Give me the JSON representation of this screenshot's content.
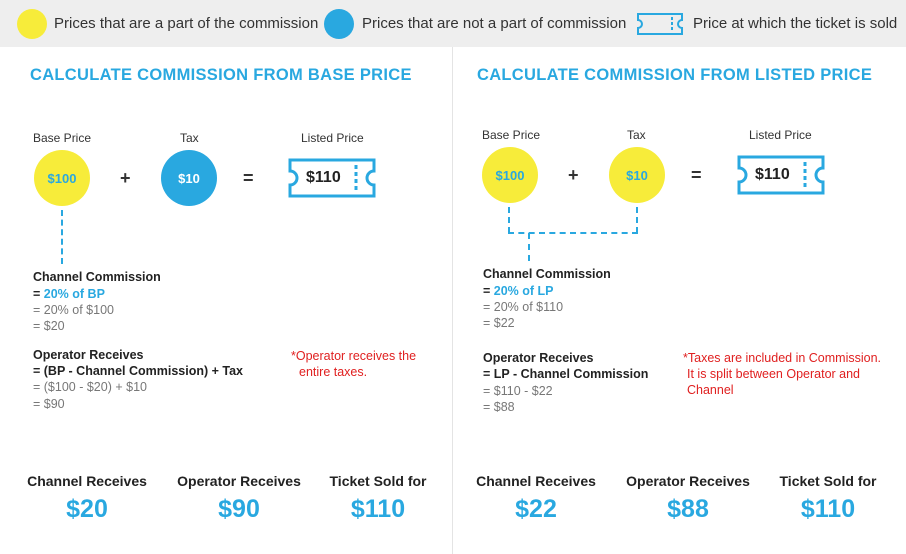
{
  "legend": {
    "yellow_label": "Prices that are a part of the commission",
    "blue_label": "Prices that are not a part of commission",
    "ticket_label": "Price at which the ticket is sold"
  },
  "colors": {
    "accent": "#29a8e0",
    "yellow": "#f7ec3a",
    "note": "#e02020"
  },
  "left": {
    "title": "CALCULATE COMMISSION FROM BASE PRICE",
    "base_label": "Base Price",
    "base_value": "$100",
    "plus": "+",
    "tax_label": "Tax",
    "tax_value": "$10",
    "equals": "=",
    "listed_label": "Listed Price",
    "listed_value": "$110",
    "channel_heading": "Channel Commission",
    "channel_eq_prefix": "= ",
    "channel_formula": "20% of BP",
    "channel_line2": "= 20% of $100",
    "channel_line3": "= $20",
    "operator_heading": "Operator Receives",
    "operator_formula": "= (BP - Channel Commission) + Tax",
    "operator_line2": "= ($100 - $20) + $10",
    "operator_line3": "= $90",
    "note_line1": "*Operator receives the",
    "note_line2": "entire taxes.",
    "summary": [
      {
        "label": "Channel Receives",
        "value": "$20"
      },
      {
        "label": "Operator Receives",
        "value": "$90"
      },
      {
        "label": "Ticket Sold for",
        "value": "$110"
      }
    ]
  },
  "right": {
    "title": "CALCULATE COMMISSION FROM LISTED PRICE",
    "base_label": "Base Price",
    "base_value": "$100",
    "plus": "+",
    "tax_label": "Tax",
    "tax_value": "$10",
    "equals": "=",
    "listed_label": "Listed Price",
    "listed_value": "$110",
    "channel_heading": "Channel Commission",
    "channel_eq_prefix": "= ",
    "channel_formula": "20% of LP",
    "channel_line2": "= 20% of $110",
    "channel_line3": "= $22",
    "operator_heading": "Operator Receives",
    "operator_formula": "= LP - Channel Commission",
    "operator_line2": "= $110 - $22",
    "operator_line3": "= $88",
    "note_line1": "*Taxes are included in Commission.",
    "note_line2": "It is split between Operator and",
    "note_line3": "Channel",
    "summary": [
      {
        "label": "Channel Receives",
        "value": "$22"
      },
      {
        "label": "Operator Receives",
        "value": "$88"
      },
      {
        "label": "Ticket Sold for",
        "value": "$110"
      }
    ]
  }
}
